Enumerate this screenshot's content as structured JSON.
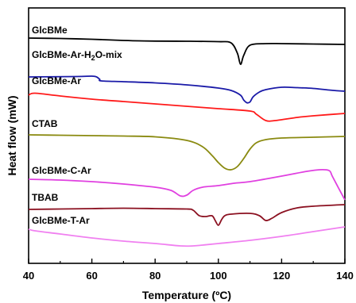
{
  "chart_data": {
    "type": "line",
    "xlabel": "Temperature (ºC)",
    "ylabel": "Heat flow (mW)",
    "xlim": [
      40,
      140
    ],
    "x_ticks": [
      "40",
      "60",
      "80",
      "100",
      "120",
      "140"
    ],
    "y_ticks_labeled": false,
    "grid": false,
    "legend": "none",
    "series": [
      {
        "name": "GlcBMe",
        "color": "#000000",
        "label_parts": [
          {
            "t": "GlcBMe"
          }
        ],
        "x": [
          40,
          50,
          60,
          70,
          75,
          80,
          90,
          100,
          104,
          106,
          107,
          108,
          110,
          115,
          120,
          130,
          140
        ],
        "y": [
          48,
          48.5,
          49.5,
          51,
          51.5,
          51.8,
          52,
          52.5,
          54,
          67,
          81,
          70,
          57,
          55,
          55,
          55.5,
          56
        ]
      },
      {
        "name": "GlcBMe-Ar-H2O-mix",
        "color": "#1a1aa8",
        "label_parts": [
          {
            "t": "GlcBMe-Ar-H"
          },
          {
            "t": "2",
            "sub": true
          },
          {
            "t": "O-mix"
          }
        ],
        "x": [
          40,
          55,
          60,
          61.5,
          62.5,
          63,
          70,
          80,
          90,
          100,
          104,
          107,
          108,
          109,
          110,
          111,
          113,
          115,
          120,
          125,
          130,
          135,
          140
        ],
        "y": [
          97,
          96.5,
          96,
          97,
          100,
          102,
          103,
          104.5,
          107,
          111,
          114,
          120,
          126,
          129.5,
          128.5,
          122,
          116,
          113,
          110,
          110.5,
          111.5,
          113.5,
          115
        ]
      },
      {
        "name": "GlcBMe-Ar",
        "color": "#ff1a1a",
        "label_parts": [
          {
            "t": "GlcBMe-Ar"
          }
        ],
        "x": [
          40,
          42,
          50,
          60,
          70,
          80,
          90,
          100,
          110,
          112,
          115,
          118,
          125,
          130,
          140
        ],
        "y": [
          120,
          117.5,
          121,
          125,
          128,
          131,
          134,
          137,
          140,
          144,
          152,
          152,
          148,
          146,
          143
        ]
      },
      {
        "name": "CTAB",
        "color": "#8a8a10",
        "label_parts": [
          {
            "t": "CTAB"
          }
        ],
        "x": [
          40,
          50,
          60,
          70,
          80,
          90,
          95,
          98,
          100,
          102,
          104,
          106,
          108,
          110,
          112,
          115,
          120,
          130,
          140
        ],
        "y": [
          170,
          170.5,
          171,
          171.5,
          172.5,
          177,
          185,
          196,
          205,
          212,
          214,
          210,
          200,
          188,
          180,
          176,
          174,
          173,
          172
        ]
      },
      {
        "name": "GlcBMe-C-Ar",
        "color": "#e040e0",
        "label_parts": [
          {
            "t": "GlcBMe-C-Ar"
          }
        ],
        "x": [
          40,
          50,
          60,
          70,
          80,
          85,
          88,
          90,
          92,
          95,
          100,
          105,
          110,
          120,
          128,
          132,
          135,
          136,
          138,
          140
        ],
        "y": [
          226,
          227,
          229,
          232,
          236,
          240,
          247,
          246,
          240,
          236,
          234,
          231,
          229,
          222,
          216,
          214,
          215,
          222,
          237,
          252
        ]
      },
      {
        "name": "TBAB",
        "color": "#8b1020",
        "label_parts": [
          {
            "t": "TBAB"
          }
        ],
        "x": [
          40,
          50,
          60,
          70,
          80,
          90,
          92,
          94,
          96,
          98,
          99,
          100,
          101,
          102,
          104,
          110,
          113,
          115,
          117,
          120,
          125,
          130,
          140
        ],
        "y": [
          264,
          263.5,
          263,
          262.5,
          263,
          263.5,
          265,
          272,
          273,
          272,
          278,
          284,
          277,
          272,
          270,
          269,
          272,
          278,
          275,
          268,
          262,
          260,
          258
        ]
      },
      {
        "name": "GlcBMe-T-Ar",
        "color": "#f080f0",
        "label_parts": [
          {
            "t": "GlcBMe-T-Ar"
          }
        ],
        "x": [
          40,
          42,
          50,
          60,
          70,
          80,
          88,
          92,
          95,
          100,
          110,
          120,
          130,
          135,
          140
        ],
        "y": [
          289,
          291,
          295,
          300,
          304,
          307,
          310,
          310,
          309,
          307,
          303,
          298,
          292,
          289,
          286
        ]
      }
    ]
  }
}
